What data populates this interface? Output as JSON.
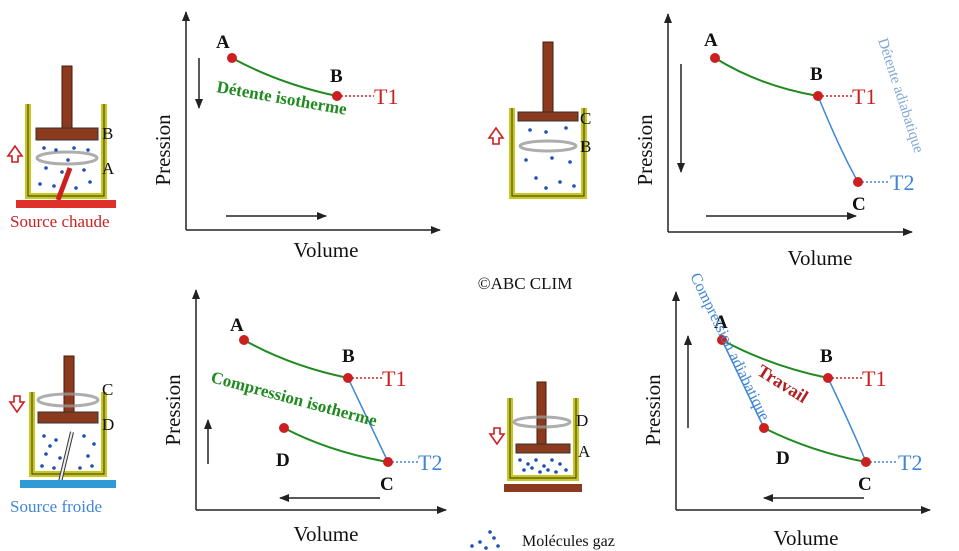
{
  "colors": {
    "green": "#1f8a1f",
    "red": "#cc1f1f",
    "blue": "#3f86d6",
    "light_blue": "#7fa8d8",
    "dark_red": "#b02020",
    "rod": "#8b3a1e",
    "cylinder": "#c9c81a",
    "gas": "#1f4fb5"
  },
  "icons": [
    "cylinder-piston-icon",
    "up-arrow-icon",
    "down-arrow-icon",
    "gas-molecules-icon"
  ],
  "copyright": "©ABC CLIM",
  "panels": {
    "p1": {
      "ylabel": "Pression",
      "xlabel": "Volume",
      "pt_a": "A",
      "pt_b": "B",
      "t1": "T1",
      "curve_label": "Détente isotherme"
    },
    "p2": {
      "ylabel": "Pression",
      "xlabel": "Volume",
      "pt_a": "A",
      "pt_b": "B",
      "pt_c": "C",
      "t1": "T1",
      "t2": "T2",
      "curve_label": "Détente adiabatique"
    },
    "p3": {
      "ylabel": "Pression",
      "xlabel": "Volume",
      "pt_a": "A",
      "pt_b": "B",
      "pt_c": "C",
      "pt_d": "D",
      "t1": "T1",
      "t2": "T2",
      "curve_label": "Compression isotherme"
    },
    "p4": {
      "ylabel": "Pression",
      "xlabel": "Volume",
      "pt_a": "A",
      "pt_b": "B",
      "pt_c": "C",
      "pt_d": "D",
      "t1": "T1",
      "t2": "T2",
      "curve_label": "Compression adiabatique",
      "work_label": "Travail"
    }
  },
  "cylinders": {
    "c1": {
      "top": "B",
      "bottom": "A",
      "source": "Source chaude"
    },
    "c2": {
      "top": "C",
      "bottom": "B"
    },
    "c3": {
      "top": "C",
      "bottom": "D",
      "source": "Source froide"
    },
    "c4": {
      "top": "D",
      "bottom": "A"
    }
  },
  "legend": {
    "molecules": "Molécules gaz"
  }
}
